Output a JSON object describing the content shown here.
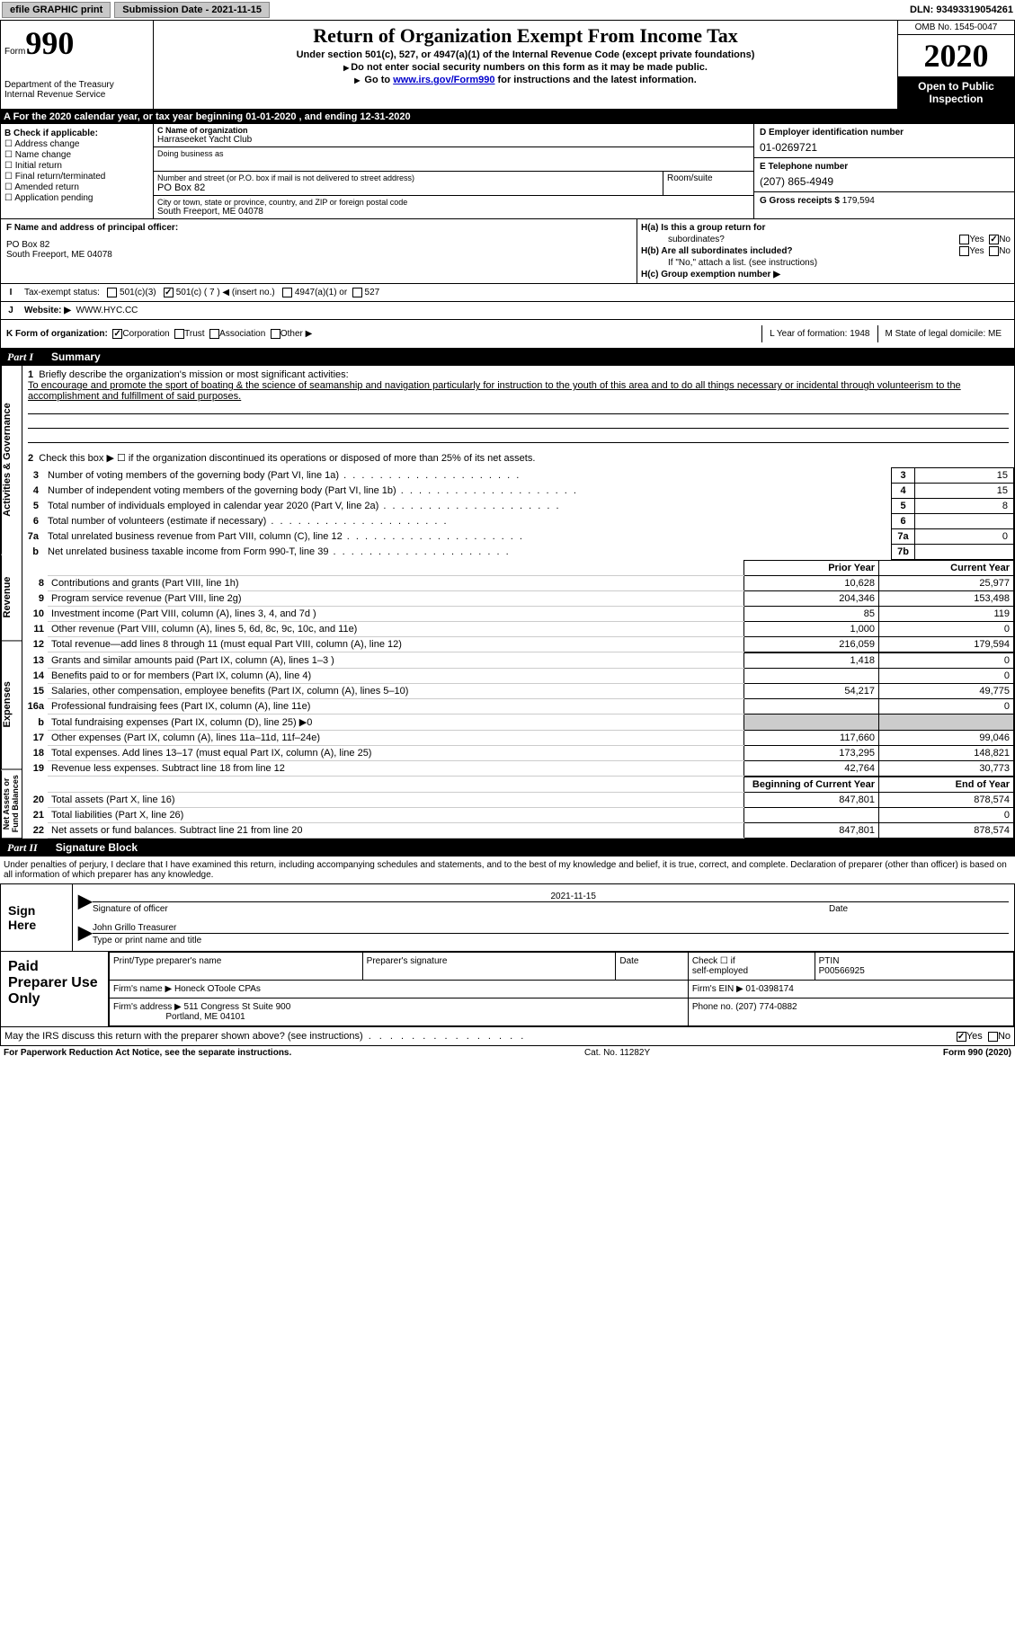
{
  "topbar": {
    "efile": "efile GRAPHIC print",
    "submission": "Submission Date - 2021-11-15",
    "dln": "DLN: 93493319054261"
  },
  "header": {
    "form_word": "Form",
    "form_num": "990",
    "dept": "Department of the Treasury\nInternal Revenue Service",
    "title": "Return of Organization Exempt From Income Tax",
    "sub1": "Under section 501(c), 527, or 4947(a)(1) of the Internal Revenue Code (except private foundations)",
    "sub2": "Do not enter social security numbers on this form as it may be made public.",
    "sub3_pre": "Go to ",
    "sub3_link": "www.irs.gov/Form990",
    "sub3_post": " for instructions and the latest information.",
    "omb": "OMB No. 1545-0047",
    "year": "2020",
    "open1": "Open to Public",
    "open2": "Inspection"
  },
  "sectionA": "A   For the 2020 calendar year, or tax year beginning 01-01-2020    , and ending 12-31-2020",
  "boxB": {
    "hdr": "B Check if applicable:",
    "items": [
      "Address change",
      "Name change",
      "Initial return",
      "Final return/terminated",
      "Amended return",
      "Application pending"
    ]
  },
  "boxC": {
    "name_lbl": "C Name of organization",
    "name": "Harraseeket Yacht Club",
    "dba_lbl": "Doing business as",
    "street_lbl": "Number and street (or P.O. box if mail is not delivered to street address)",
    "room_lbl": "Room/suite",
    "street": "PO Box 82",
    "city_lbl": "City or town, state or province, country, and ZIP or foreign postal code",
    "city": "South Freeport, ME  04078"
  },
  "boxD": {
    "ein_lbl": "D Employer identification number",
    "ein": "01-0269721",
    "tel_lbl": "E Telephone number",
    "tel": "(207) 865-4949",
    "gross_lbl": "G Gross receipts $",
    "gross": "179,594"
  },
  "boxF": {
    "lbl": "F Name and address of principal officer:",
    "l1": "PO Box 82",
    "l2": "South Freeport, ME  04078"
  },
  "boxH": {
    "ha": "H(a)  Is this a group return for",
    "ha2": "subordinates?",
    "hb": "H(b)  Are all subordinates included?",
    "hnote": "If \"No,\" attach a list. (see instructions)",
    "hc": "H(c)  Group exemption number ▶",
    "yes": "Yes",
    "no": "No"
  },
  "rowI": {
    "lbl": "Tax-exempt status:",
    "o1": "501(c)(3)",
    "o2": "501(c) ( 7 ) ◀ (insert no.)",
    "o3": "4947(a)(1) or",
    "o4": "527"
  },
  "rowJ": {
    "lbl": "Website: ▶",
    "val": "WWW.HYC.CC"
  },
  "rowK": {
    "lbl": "K Form of organization:",
    "o1": "Corporation",
    "o2": "Trust",
    "o3": "Association",
    "o4": "Other ▶"
  },
  "rowL": {
    "lbl": "L Year of formation: 1948"
  },
  "rowM": {
    "lbl": "M State of legal domicile: ME"
  },
  "part1": {
    "num": "Part I",
    "title": "Summary"
  },
  "q1": {
    "n": "1",
    "lbl": "Briefly describe the organization's mission or most significant activities:",
    "text": "To encourage and promote the sport of boating & the science of seamanship and navigation particularly for instruction to the youth of this area and to do all things necessary or incidental through volunteerism to the accomplishment and fulfillment of said purposes."
  },
  "q2": "Check this box ▶ ☐  if the organization discontinued its operations or disposed of more than 25% of its net assets.",
  "gov_rows": [
    {
      "n": "3",
      "d": "Number of voting members of the governing body (Part VI, line 1a)",
      "bn": "3",
      "bv": "15"
    },
    {
      "n": "4",
      "d": "Number of independent voting members of the governing body (Part VI, line 1b)",
      "bn": "4",
      "bv": "15"
    },
    {
      "n": "5",
      "d": "Total number of individuals employed in calendar year 2020 (Part V, line 2a)",
      "bn": "5",
      "bv": "8"
    },
    {
      "n": "6",
      "d": "Total number of volunteers (estimate if necessary)",
      "bn": "6",
      "bv": ""
    },
    {
      "n": "7a",
      "d": "Total unrelated business revenue from Part VIII, column (C), line 12",
      "bn": "7a",
      "bv": "0"
    },
    {
      "n": "b",
      "d": "Net unrelated business taxable income from Form 990-T, line 39",
      "bn": "7b",
      "bv": ""
    }
  ],
  "col_hdr": {
    "py": "Prior Year",
    "cy": "Current Year"
  },
  "rev_rows": [
    {
      "n": "8",
      "d": "Contributions and grants (Part VIII, line 1h)",
      "py": "10,628",
      "cy": "25,977"
    },
    {
      "n": "9",
      "d": "Program service revenue (Part VIII, line 2g)",
      "py": "204,346",
      "cy": "153,498"
    },
    {
      "n": "10",
      "d": "Investment income (Part VIII, column (A), lines 3, 4, and 7d )",
      "py": "85",
      "cy": "119"
    },
    {
      "n": "11",
      "d": "Other revenue (Part VIII, column (A), lines 5, 6d, 8c, 9c, 10c, and 11e)",
      "py": "1,000",
      "cy": "0"
    },
    {
      "n": "12",
      "d": "Total revenue—add lines 8 through 11 (must equal Part VIII, column (A), line 12)",
      "py": "216,059",
      "cy": "179,594"
    }
  ],
  "exp_rows": [
    {
      "n": "13",
      "d": "Grants and similar amounts paid (Part IX, column (A), lines 1–3 )",
      "py": "1,418",
      "cy": "0"
    },
    {
      "n": "14",
      "d": "Benefits paid to or for members (Part IX, column (A), line 4)",
      "py": "",
      "cy": "0"
    },
    {
      "n": "15",
      "d": "Salaries, other compensation, employee benefits (Part IX, column (A), lines 5–10)",
      "py": "54,217",
      "cy": "49,775"
    },
    {
      "n": "16a",
      "d": "Professional fundraising fees (Part IX, column (A), line 11e)",
      "py": "",
      "cy": "0"
    },
    {
      "n": "b",
      "d": "Total fundraising expenses (Part IX, column (D), line 25) ▶0",
      "py": "GREY",
      "cy": "GREY"
    },
    {
      "n": "17",
      "d": "Other expenses (Part IX, column (A), lines 11a–11d, 11f–24e)",
      "py": "117,660",
      "cy": "99,046"
    },
    {
      "n": "18",
      "d": "Total expenses. Add lines 13–17 (must equal Part IX, column (A), line 25)",
      "py": "173,295",
      "cy": "148,821"
    },
    {
      "n": "19",
      "d": "Revenue less expenses. Subtract line 18 from line 12",
      "py": "42,764",
      "cy": "30,773"
    }
  ],
  "col_hdr2": {
    "py": "Beginning of Current Year",
    "cy": "End of Year"
  },
  "net_rows": [
    {
      "n": "20",
      "d": "Total assets (Part X, line 16)",
      "py": "847,801",
      "cy": "878,574"
    },
    {
      "n": "21",
      "d": "Total liabilities (Part X, line 26)",
      "py": "",
      "cy": "0"
    },
    {
      "n": "22",
      "d": "Net assets or fund balances. Subtract line 21 from line 20",
      "py": "847,801",
      "cy": "878,574"
    }
  ],
  "vtabs": {
    "g": "Activities & Governance",
    "r": "Revenue",
    "e": "Expenses",
    "n": "Net Assets or\nFund Balances"
  },
  "part2": {
    "num": "Part II",
    "title": "Signature Block"
  },
  "sig_text": "Under penalties of perjury, I declare that I have examined this return, including accompanying schedules and statements, and to the best of my knowledge and belief, it is true, correct, and complete. Declaration of preparer (other than officer) is based on all information of which preparer has any knowledge.",
  "sign": {
    "left": "Sign Here",
    "date": "2021-11-15",
    "sig_lbl": "Signature of officer",
    "date_lbl": "Date",
    "name": "John Grillo Treasurer",
    "name_lbl": "Type or print name and title"
  },
  "prep": {
    "left": "Paid Preparer Use Only",
    "c1": "Print/Type preparer's name",
    "c2": "Preparer's signature",
    "c3": "Date",
    "c4a": "Check ☐ if",
    "c4b": "self-employed",
    "c5a": "PTIN",
    "c5b": "P00566925",
    "firm_lbl": "Firm's name   ▶",
    "firm": "Honeck OToole CPAs",
    "ein_lbl": "Firm's EIN ▶",
    "ein": "01-0398174",
    "addr_lbl": "Firm's address ▶",
    "addr1": "511 Congress St Suite 900",
    "addr2": "Portland, ME  04101",
    "phone_lbl": "Phone no.",
    "phone": "(207) 774-0882"
  },
  "may": {
    "text": "May the IRS discuss this return with the preparer shown above? (see instructions)",
    "yes": "Yes",
    "no": "No"
  },
  "footer": {
    "l": "For Paperwork Reduction Act Notice, see the separate instructions.",
    "c": "Cat. No. 11282Y",
    "r": "Form 990 (2020)"
  }
}
